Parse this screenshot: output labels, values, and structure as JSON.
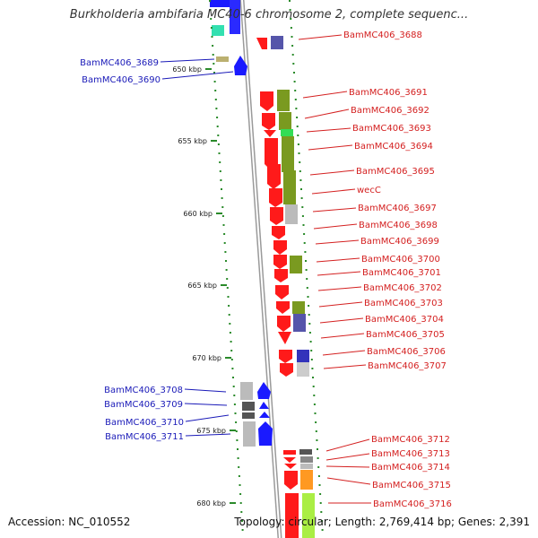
{
  "title": "Burkholderia ambifaria MC40-6 chromosome 2, complete sequenc...",
  "footer": {
    "accession": "Accession: NC_010552",
    "topology": "Topology: circular; Length: 2,769,414 bp; Genes: 2,391"
  },
  "scale_ticks": [
    "650 kbp",
    "655 kbp",
    "660 kbp",
    "665 kbp",
    "670 kbp",
    "675 kbp",
    "680 kbp"
  ],
  "colors": {
    "forward_gene": "#1a1aff",
    "reverse_gene": "#ff1a1a",
    "label_forward": "#1a1ab8",
    "label_reverse": "#d42020",
    "scale": "#2a8a2a",
    "backbone": "#9a9a9a"
  },
  "labels_left": [
    "BamMC406_3689",
    "BamMC406_3690",
    "BamMC406_3708",
    "BamMC406_3709",
    "BamMC406_3710",
    "BamMC406_3711"
  ],
  "labels_right": [
    "BamMC406_3688",
    "BamMC406_3691",
    "BamMC406_3692",
    "BamMC406_3693",
    "BamMC406_3694",
    "BamMC406_3695",
    "wecC",
    "BamMC406_3697",
    "BamMC406_3698",
    "BamMC406_3699",
    "BamMC406_3700",
    "BamMC406_3701",
    "BamMC406_3702",
    "BamMC406_3703",
    "BamMC406_3704",
    "BamMC406_3705",
    "BamMC406_3706",
    "BamMC406_3707",
    "BamMC406_3712",
    "BamMC406_3713",
    "BamMC406_3714",
    "BamMC406_3715",
    "BamMC406_3716"
  ]
}
